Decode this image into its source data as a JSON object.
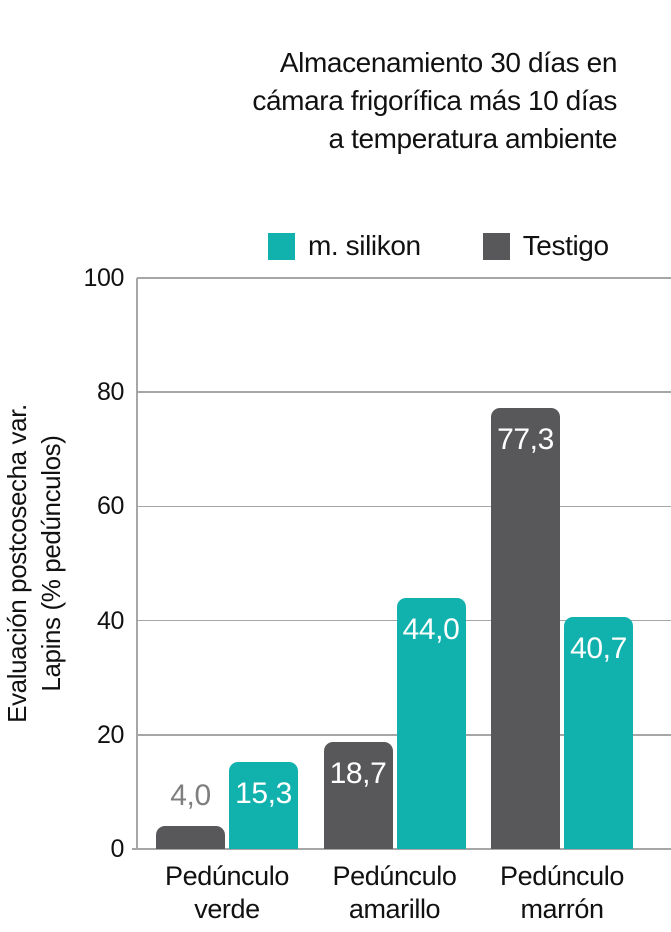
{
  "title": {
    "lines": [
      "Almacenamiento 30 días en",
      "cámara frigorífica más 10 días",
      "a temperatura ambiente"
    ]
  },
  "legend": [
    {
      "label": "m. silikon",
      "color": "#11b2ae"
    },
    {
      "label": "Testigo",
      "color": "#58585a"
    }
  ],
  "y_axis": {
    "title_lines": [
      "Evaluación postcosecha var.",
      "Lapins (% pedúnculos)"
    ]
  },
  "chart_data": {
    "type": "bar",
    "title": "Almacenamiento 30 días en cámara frigorífica más 10 días a temperatura ambiente",
    "categories": [
      "Pedúnculo verde",
      "Pedúnculo amarillo",
      "Pedúnculo marrón"
    ],
    "category_lines": [
      [
        "Pedúnculo",
        "verde"
      ],
      [
        "Pedúnculo",
        "amarillo"
      ],
      [
        "Pedúnculo",
        "marrón"
      ]
    ],
    "series": [
      {
        "name": "Testigo",
        "color": "#58585a",
        "values": [
          4.0,
          18.7,
          77.3
        ],
        "labels": [
          "4,0",
          "18,7",
          "77,3"
        ]
      },
      {
        "name": "m. silikon",
        "color": "#11b2ae",
        "values": [
          15.3,
          44.0,
          40.7
        ],
        "labels": [
          "15,3",
          "44,0",
          "40,7"
        ]
      }
    ],
    "ylabel": "Evaluación postcosecha var. Lapins (% pedúnculos)",
    "ylim": [
      0,
      100
    ],
    "yticks": [
      0,
      20,
      40,
      60,
      80,
      100
    ],
    "grid": true,
    "legend_position": "top"
  },
  "colors": {
    "background": "#ffffff",
    "grid": "#a6a6a6",
    "axis": "#a6a6a6",
    "inside_label": "#ffffff",
    "outside_label": "#7f7f7f",
    "text": "#111111"
  }
}
